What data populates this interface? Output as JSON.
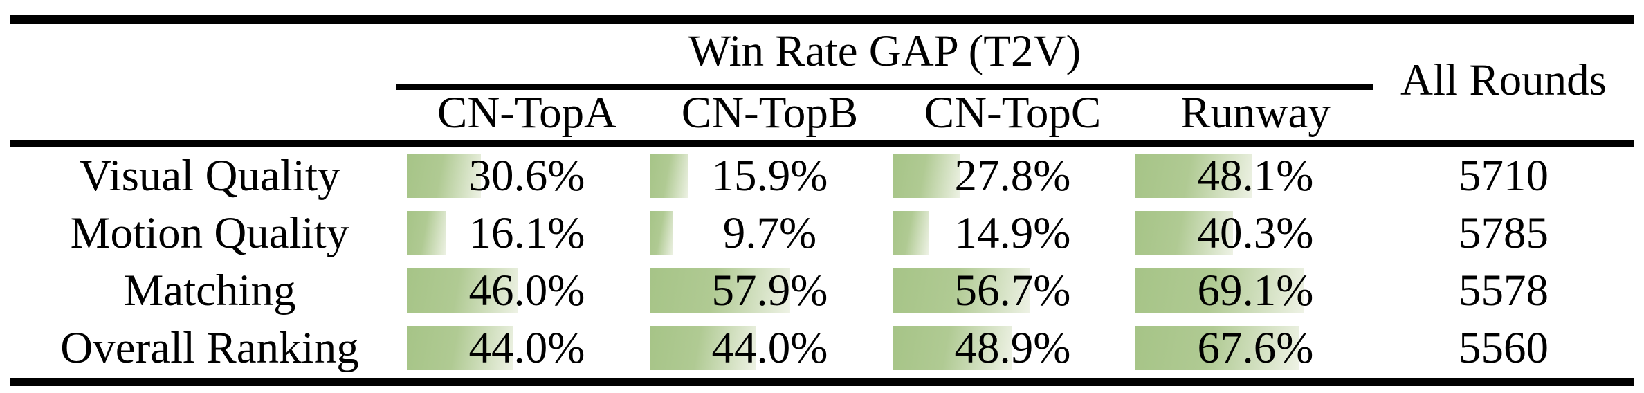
{
  "table": {
    "header": {
      "group_title": "Win Rate GAP (T2V)",
      "all_rounds": "All Rounds",
      "columns": [
        "CN-TopA",
        "CN-TopB",
        "CN-TopC",
        "Runway"
      ]
    },
    "rows": [
      {
        "label": "Visual Quality",
        "cells": [
          {
            "text": "30.6%",
            "pct": 30.6
          },
          {
            "text": "15.9%",
            "pct": 15.9
          },
          {
            "text": "27.8%",
            "pct": 27.8
          },
          {
            "text": "48.1%",
            "pct": 48.1
          }
        ],
        "all_rounds": "5710"
      },
      {
        "label": "Motion Quality",
        "cells": [
          {
            "text": "16.1%",
            "pct": 16.1
          },
          {
            "text": "9.7%",
            "pct": 9.7
          },
          {
            "text": "14.9%",
            "pct": 14.9
          },
          {
            "text": "40.3%",
            "pct": 40.3
          }
        ],
        "all_rounds": "5785"
      },
      {
        "label": "Matching",
        "cells": [
          {
            "text": "46.0%",
            "pct": 46.0
          },
          {
            "text": "57.9%",
            "pct": 57.9
          },
          {
            "text": "56.7%",
            "pct": 56.7
          },
          {
            "text": "69.1%",
            "pct": 69.1
          }
        ],
        "all_rounds": "5578"
      },
      {
        "label": "Overall Ranking",
        "cells": [
          {
            "text": "44.0%",
            "pct": 44.0
          },
          {
            "text": "44.0%",
            "pct": 44.0
          },
          {
            "text": "48.9%",
            "pct": 48.9
          },
          {
            "text": "67.6%",
            "pct": 67.6
          }
        ],
        "all_rounds": "5560"
      }
    ],
    "colors": {
      "bar_green": "#a6c487",
      "bar_fade": "#eef2e5",
      "rule_black": "#000000"
    }
  },
  "chart_data": {
    "type": "bar",
    "title": "Win Rate GAP (T2V)",
    "categories": [
      "CN-TopA",
      "CN-TopB",
      "CN-TopC",
      "Runway"
    ],
    "series": [
      {
        "name": "Visual Quality",
        "values": [
          30.6,
          15.9,
          27.8,
          48.1
        ]
      },
      {
        "name": "Motion Quality",
        "values": [
          16.1,
          9.7,
          14.9,
          40.3
        ]
      },
      {
        "name": "Matching",
        "values": [
          46.0,
          57.9,
          56.7,
          69.1
        ]
      },
      {
        "name": "Overall Ranking",
        "values": [
          44.0,
          44.0,
          48.9,
          67.6
        ]
      }
    ],
    "all_rounds_column": {
      "label": "All Rounds",
      "values": [
        5710,
        5785,
        5578,
        5560
      ]
    },
    "unit": "%",
    "xlim": [
      0,
      100
    ],
    "legend_position": "none",
    "grid": false
  }
}
